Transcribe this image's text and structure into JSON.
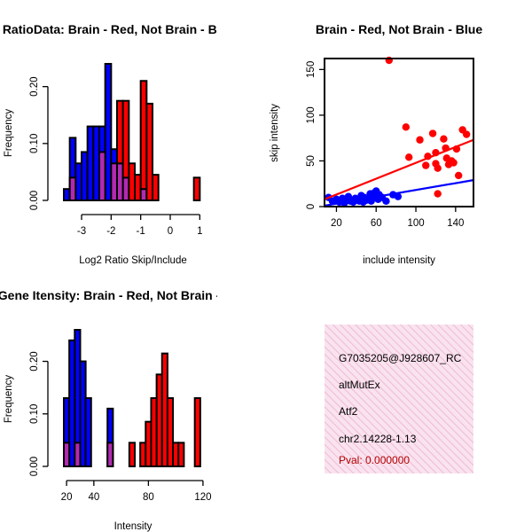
{
  "colors": {
    "red": "#ff0000",
    "blue": "#0000ff",
    "overlap": "#b22ab2",
    "info_bg": "#f9e3ee",
    "info_hatch": "#f0b9d6",
    "pval": "#b00000"
  },
  "chart_data": [
    {
      "type": "bar",
      "title": "RatioData: Brain - Red, Not Brain - Blu",
      "xlabel": "Log2 Ratio Skip/Include",
      "ylabel": "Frequency",
      "xlim": [
        -3.6,
        1.2
      ],
      "ylim": [
        0,
        0.24
      ],
      "xticks": [
        "-3",
        "-2",
        "-1",
        "0",
        "1"
      ],
      "xtick_values": [
        -3,
        -2,
        -1,
        0,
        1
      ],
      "yticks": [
        "0.00",
        "0.10",
        "0.20"
      ],
      "ytick_values": [
        0,
        0.1,
        0.2
      ],
      "bin_width": 0.2,
      "series": [
        {
          "name": "Not Brain",
          "color": "blue",
          "bins": [
            [
              -3.6,
              0.02
            ],
            [
              -3.4,
              0.11
            ],
            [
              -3.2,
              0.065
            ],
            [
              -3.0,
              0.085
            ],
            [
              -2.8,
              0.13
            ],
            [
              -2.6,
              0.13
            ],
            [
              -2.4,
              0.13
            ],
            [
              -2.2,
              0.24
            ],
            [
              -2.0,
              0.09
            ],
            [
              -1.8,
              0.065
            ],
            [
              -1.6,
              0.04
            ],
            [
              -1.4,
              0.0
            ],
            [
              -1.2,
              0.0
            ],
            [
              -1.0,
              0.02
            ]
          ]
        },
        {
          "name": "Brain",
          "color": "red",
          "bins": [
            [
              -3.4,
              0.04
            ],
            [
              -2.4,
              0.085
            ],
            [
              -2.0,
              0.065
            ],
            [
              -1.8,
              0.175
            ],
            [
              -1.6,
              0.175
            ],
            [
              -1.4,
              0.065
            ],
            [
              -1.2,
              0.045
            ],
            [
              -1.0,
              0.21
            ],
            [
              -0.8,
              0.17
            ],
            [
              -0.6,
              0.045
            ],
            [
              0.8,
              0.04
            ]
          ]
        }
      ]
    },
    {
      "type": "scatter",
      "title": "Brain - Red, Not Brain - Blue",
      "xlabel": "include intensity",
      "ylabel": "skip intensity",
      "xlim": [
        8,
        158
      ],
      "ylim": [
        0,
        162
      ],
      "xticks": [
        "20",
        "60",
        "100",
        "140"
      ],
      "xtick_values": [
        20,
        60,
        100,
        140
      ],
      "yticks": [
        "0",
        "50",
        "100",
        "150"
      ],
      "ytick_values": [
        0,
        50,
        100,
        150
      ],
      "series": [
        {
          "name": "Brain",
          "color": "red",
          "points": [
            [
              73,
              160
            ],
            [
              90,
              87
            ],
            [
              93,
              54
            ],
            [
              104,
              73
            ],
            [
              110,
              45
            ],
            [
              112,
              55
            ],
            [
              117,
              80
            ],
            [
              120,
              59
            ],
            [
              120,
              47
            ],
            [
              122,
              14
            ],
            [
              122,
              42
            ],
            [
              128,
              74
            ],
            [
              130,
              64
            ],
            [
              131,
              53
            ],
            [
              133,
              46
            ],
            [
              136,
              50
            ],
            [
              138,
              48
            ],
            [
              141,
              63
            ],
            [
              143,
              34
            ],
            [
              147,
              84
            ],
            [
              151,
              79
            ]
          ],
          "fit": [
            [
              8,
              8
            ],
            [
              158,
              73
            ]
          ]
        },
        {
          "name": "Not Brain",
          "color": "blue",
          "points": [
            [
              12,
              10
            ],
            [
              16,
              6
            ],
            [
              20,
              8
            ],
            [
              23,
              5
            ],
            [
              26,
              9
            ],
            [
              28,
              4
            ],
            [
              30,
              7
            ],
            [
              32,
              11
            ],
            [
              34,
              6
            ],
            [
              37,
              5
            ],
            [
              39,
              9
            ],
            [
              41,
              8
            ],
            [
              43,
              6
            ],
            [
              45,
              12
            ],
            [
              47,
              5
            ],
            [
              48,
              10
            ],
            [
              50,
              7
            ],
            [
              52,
              9
            ],
            [
              54,
              14
            ],
            [
              55,
              6
            ],
            [
              57,
              11
            ],
            [
              58,
              15
            ],
            [
              60,
              17
            ],
            [
              62,
              8
            ],
            [
              63,
              13
            ],
            [
              66,
              10
            ],
            [
              70,
              6
            ],
            [
              77,
              13
            ],
            [
              82,
              11
            ]
          ],
          "fit": [
            [
              8,
              1
            ],
            [
              158,
              29
            ]
          ]
        }
      ]
    },
    {
      "type": "bar",
      "title": "Gene Itensity: Brain - Red, Not Brain - B",
      "xlabel": "Intensity",
      "ylabel": "Frequency",
      "xlim": [
        18,
        122
      ],
      "ylim": [
        0,
        0.26
      ],
      "xticks": [
        "20",
        "40",
        "80",
        "120"
      ],
      "xtick_values": [
        20,
        40,
        80,
        120
      ],
      "yticks": [
        "0.00",
        "0.10",
        "0.20"
      ],
      "ytick_values": [
        0,
        0.1,
        0.2
      ],
      "bin_width": 4,
      "series": [
        {
          "name": "Not Brain",
          "color": "blue",
          "bins": [
            [
              18,
              0.13
            ],
            [
              22,
              0.24
            ],
            [
              26,
              0.26
            ],
            [
              30,
              0.2
            ],
            [
              34,
              0.13
            ],
            [
              50,
              0.11
            ]
          ]
        },
        {
          "name": "Brain",
          "color": "red",
          "bins": [
            [
              18,
              0.045
            ],
            [
              26,
              0.045
            ],
            [
              50,
              0.045
            ],
            [
              66,
              0.045
            ],
            [
              74,
              0.045
            ],
            [
              78,
              0.085
            ],
            [
              82,
              0.13
            ],
            [
              86,
              0.175
            ],
            [
              90,
              0.215
            ],
            [
              94,
              0.13
            ],
            [
              98,
              0.045
            ],
            [
              102,
              0.045
            ],
            [
              114,
              0.13
            ]
          ]
        }
      ]
    }
  ],
  "info_panel": {
    "lines": [
      "G7035205@J928607_RC",
      "altMutEx",
      "Atf2",
      "chr2.14228-1.13"
    ],
    "pval": "Pval: 0.000000"
  }
}
